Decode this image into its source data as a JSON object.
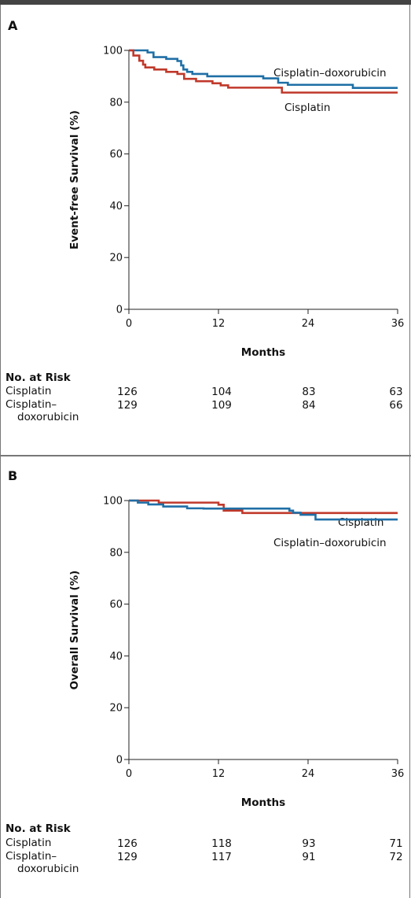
{
  "panels": [
    {
      "letter": "A",
      "risk_title": "No. at Risk",
      "risk_rows": [
        {
          "label": "Cisplatin",
          "values": [
            "126",
            "104",
            "83",
            "63"
          ]
        },
        {
          "label": "Cisplatin–",
          "label2": "doxorubicin",
          "values": [
            "129",
            "109",
            "84",
            "66"
          ]
        }
      ]
    },
    {
      "letter": "B",
      "risk_title": "No. at Risk",
      "risk_rows": [
        {
          "label": "Cisplatin",
          "values": [
            "126",
            "118",
            "93",
            "71"
          ]
        },
        {
          "label": "Cisplatin–",
          "label2": "doxorubicin",
          "values": [
            "129",
            "117",
            "91",
            "72"
          ]
        }
      ]
    }
  ],
  "chart_data": [
    {
      "type": "line",
      "step": true,
      "title": "",
      "xlabel": "Months",
      "ylabel": "Event-free Survival (%)",
      "xlim": [
        0,
        36
      ],
      "ylim": [
        0,
        100
      ],
      "xticks": [
        0,
        12,
        24,
        36
      ],
      "yticks": [
        0,
        20,
        40,
        60,
        80,
        100
      ],
      "grid": false,
      "series": [
        {
          "name": "Cisplatin–doxorubicin",
          "color": "#1f6fa6",
          "x": [
            0,
            2.5,
            3.3,
            5.0,
            6.5,
            7.0,
            7.3,
            7.8,
            8.5,
            10.5,
            15.0,
            18.0,
            20.0,
            21.3,
            29.0,
            30.0,
            36.0
          ],
          "y": [
            100,
            99.2,
            97.4,
            96.7,
            95.9,
            94.2,
            92.6,
            91.7,
            90.9,
            90.0,
            90.0,
            89.2,
            87.5,
            86.7,
            86.7,
            85.5,
            85.5
          ]
        },
        {
          "name": "Cisplatin",
          "color": "#c0392b",
          "x": [
            0,
            0.6,
            1.4,
            1.9,
            2.2,
            3.4,
            5.0,
            6.5,
            7.4,
            9.0,
            11.2,
            12.3,
            13.3,
            20.0,
            20.5,
            24.0,
            36.0
          ],
          "y": [
            100,
            98.0,
            96.0,
            94.5,
            93.4,
            92.6,
            91.7,
            90.9,
            89.0,
            88.1,
            87.3,
            86.5,
            85.6,
            85.6,
            83.7,
            83.7,
            83.7
          ]
        }
      ]
    },
    {
      "type": "line",
      "step": true,
      "title": "",
      "xlabel": "Months",
      "ylabel": "Overall Survival (%)",
      "xlim": [
        0,
        36
      ],
      "ylim": [
        0,
        100
      ],
      "xticks": [
        0,
        12,
        24,
        36
      ],
      "yticks": [
        0,
        20,
        40,
        60,
        80,
        100
      ],
      "grid": false,
      "series": [
        {
          "name": "Cisplatin",
          "color": "#c0392b",
          "x": [
            0,
            3.5,
            4.0,
            11.4,
            12.0,
            12.7,
            15.2,
            24.0,
            36.0
          ],
          "y": [
            100,
            100,
            99.2,
            99.2,
            98.4,
            96.1,
            95.2,
            95.2,
            95.2
          ]
        },
        {
          "name": "Cisplatin–doxorubicin",
          "color": "#1f6fa6",
          "x": [
            0,
            1.2,
            2.6,
            4.6,
            7.8,
            10.0,
            12.0,
            21.5,
            22.0,
            23.0,
            25.0,
            36.0
          ],
          "y": [
            100,
            99.2,
            98.5,
            97.7,
            97.0,
            96.9,
            96.9,
            96.1,
            95.3,
            94.5,
            92.7,
            92.7
          ]
        }
      ]
    }
  ]
}
